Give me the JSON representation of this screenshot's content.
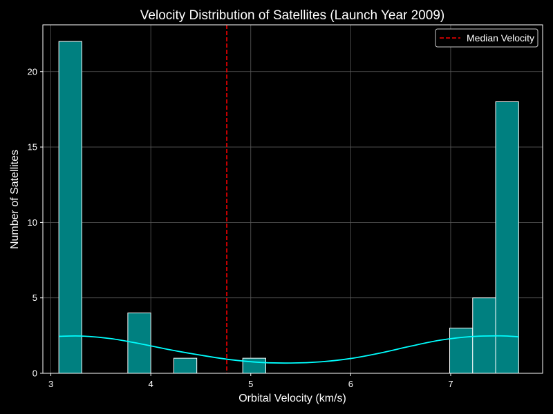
{
  "chart_data": {
    "type": "bar",
    "title": "Velocity Distribution of Satellites (Launch Year 2009)",
    "xlabel": "Orbital Velocity (km/s)",
    "ylabel": "Number of Satellites",
    "xlim": [
      2.92,
      7.92
    ],
    "ylim": [
      0,
      23.1
    ],
    "x_ticks": [
      3,
      4,
      5,
      6,
      7
    ],
    "y_ticks": [
      0,
      5,
      10,
      15,
      20
    ],
    "grid": true,
    "legend_position": "top-right",
    "bins": [
      {
        "start": 3.08,
        "end": 3.31,
        "count": 22
      },
      {
        "start": 3.31,
        "end": 3.54,
        "count": 0
      },
      {
        "start": 3.54,
        "end": 3.77,
        "count": 0
      },
      {
        "start": 3.77,
        "end": 4.0,
        "count": 4
      },
      {
        "start": 4.0,
        "end": 4.23,
        "count": 0
      },
      {
        "start": 4.23,
        "end": 4.46,
        "count": 1
      },
      {
        "start": 4.46,
        "end": 4.69,
        "count": 0
      },
      {
        "start": 4.69,
        "end": 4.92,
        "count": 0
      },
      {
        "start": 4.92,
        "end": 5.15,
        "count": 1
      },
      {
        "start": 5.15,
        "end": 5.38,
        "count": 0
      },
      {
        "start": 5.38,
        "end": 5.61,
        "count": 0
      },
      {
        "start": 5.61,
        "end": 5.84,
        "count": 0
      },
      {
        "start": 5.84,
        "end": 6.07,
        "count": 0
      },
      {
        "start": 6.07,
        "end": 6.3,
        "count": 0
      },
      {
        "start": 6.3,
        "end": 6.53,
        "count": 0
      },
      {
        "start": 6.53,
        "end": 6.76,
        "count": 0
      },
      {
        "start": 6.76,
        "end": 6.99,
        "count": 0
      },
      {
        "start": 6.99,
        "end": 7.22,
        "count": 3
      },
      {
        "start": 7.22,
        "end": 7.45,
        "count": 5
      },
      {
        "start": 7.45,
        "end": 7.68,
        "count": 18
      }
    ],
    "kde": {
      "x": [
        3.08,
        3.3,
        3.6,
        3.9,
        4.2,
        4.5,
        4.8,
        5.1,
        5.4,
        5.7,
        6.0,
        6.3,
        6.6,
        6.9,
        7.2,
        7.5,
        7.68
      ],
      "y": [
        2.45,
        2.47,
        2.3,
        1.95,
        1.55,
        1.2,
        0.9,
        0.72,
        0.68,
        0.76,
        0.98,
        1.35,
        1.8,
        2.2,
        2.43,
        2.48,
        2.42
      ]
    },
    "median": {
      "label": "Median Velocity",
      "value": 4.76
    },
    "colors": {
      "background": "#000000",
      "bar_fill": "#008080",
      "bar_edge": "#ffffff",
      "kde": "#00ffff",
      "median": "#ff0000",
      "grid": "#5a5a5a",
      "text": "#ffffff"
    }
  }
}
